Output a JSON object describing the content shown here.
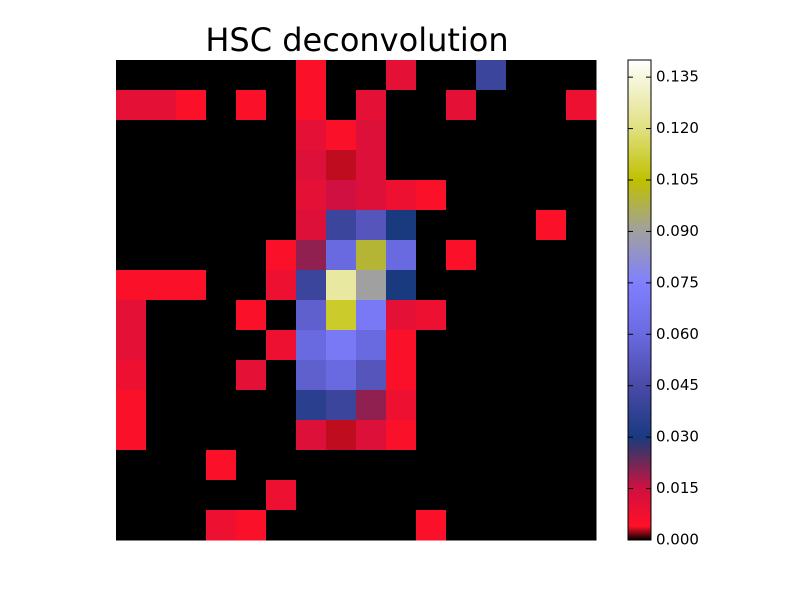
{
  "chart_data": {
    "type": "heatmap",
    "title": "HSC deconvolution",
    "values": [
      [
        0,
        0,
        0,
        0,
        0,
        0,
        0.005,
        0,
        0,
        0.01,
        0,
        0,
        0.04,
        0,
        0,
        0
      ],
      [
        0.01,
        0.01,
        0.005,
        0,
        0.005,
        0,
        0.005,
        0,
        0.01,
        0,
        0,
        0.01,
        0,
        0,
        0,
        0.008
      ],
      [
        0,
        0,
        0,
        0,
        0,
        0,
        0.01,
        0.005,
        0.012,
        0,
        0,
        0,
        0,
        0,
        0,
        0
      ],
      [
        0,
        0,
        0,
        0,
        0,
        0,
        0.012,
        0.003,
        0.012,
        0,
        0,
        0,
        0,
        0,
        0,
        0
      ],
      [
        0,
        0,
        0,
        0,
        0,
        0,
        0.01,
        0.015,
        0.012,
        0.008,
        0.005,
        0,
        0,
        0,
        0,
        0
      ],
      [
        0,
        0,
        0,
        0,
        0,
        0,
        0.012,
        0.04,
        0.05,
        0.03,
        0,
        0,
        0,
        0,
        0.005,
        0
      ],
      [
        0,
        0,
        0,
        0,
        0,
        0.005,
        0.02,
        0.06,
        0.1,
        0.06,
        0,
        0.005,
        0,
        0,
        0,
        0
      ],
      [
        0.005,
        0.005,
        0.005,
        0,
        0,
        0.008,
        0.04,
        0.125,
        0.09,
        0.03,
        0,
        0,
        0,
        0,
        0,
        0
      ],
      [
        0.01,
        0,
        0,
        0,
        0.005,
        0,
        0.055,
        0.11,
        0.07,
        0.01,
        0.008,
        0,
        0,
        0,
        0,
        0
      ],
      [
        0.01,
        0,
        0,
        0,
        0,
        0.008,
        0.06,
        0.07,
        0.06,
        0.005,
        0,
        0,
        0,
        0,
        0,
        0
      ],
      [
        0.008,
        0,
        0,
        0,
        0.01,
        0,
        0.055,
        0.06,
        0.05,
        0.005,
        0,
        0,
        0,
        0,
        0,
        0
      ],
      [
        0.005,
        0,
        0,
        0,
        0,
        0,
        0.035,
        0.04,
        0.02,
        0.008,
        0,
        0,
        0,
        0,
        0,
        0
      ],
      [
        0.005,
        0,
        0,
        0,
        0,
        0,
        0.012,
        0.003,
        0.012,
        0.005,
        0,
        0,
        0,
        0,
        0,
        0
      ],
      [
        0,
        0,
        0,
        0.005,
        0,
        0,
        0,
        0,
        0,
        0,
        0,
        0,
        0,
        0,
        0,
        0
      ],
      [
        0,
        0,
        0,
        0,
        0,
        0.008,
        0,
        0,
        0,
        0,
        0,
        0,
        0,
        0,
        0,
        0
      ],
      [
        0,
        0,
        0,
        0.008,
        0.005,
        0,
        0,
        0,
        0,
        0,
        0.005,
        0,
        0,
        0,
        0,
        0
      ]
    ],
    "clim": [
      0,
      0.14
    ],
    "cticks": [
      {
        "value": 0,
        "label": "0.000"
      },
      {
        "value": 0.015,
        "label": "0.015"
      },
      {
        "value": 0.03,
        "label": "0.030"
      },
      {
        "value": 0.045,
        "label": "0.045"
      },
      {
        "value": 0.06,
        "label": "0.060"
      },
      {
        "value": 0.075,
        "label": "0.075"
      },
      {
        "value": 0.09,
        "label": "0.090"
      },
      {
        "value": 0.105,
        "label": "0.105"
      },
      {
        "value": 0.12,
        "label": "0.120"
      },
      {
        "value": 0.135,
        "label": "0.135"
      }
    ],
    "colormap": [
      [
        0,
        "#000000"
      ],
      [
        0.004,
        "#ff1028"
      ],
      [
        0.015,
        "#d01040"
      ],
      [
        0.025,
        "#503060"
      ],
      [
        0.03,
        "#1a3a80"
      ],
      [
        0.045,
        "#4a4aa8"
      ],
      [
        0.06,
        "#6a6ae0"
      ],
      [
        0.075,
        "#8080ff"
      ],
      [
        0.09,
        "#a0a0a0"
      ],
      [
        0.105,
        "#c0c000"
      ],
      [
        0.12,
        "#e0e080"
      ],
      [
        0.14,
        "#ffffff"
      ]
    ]
  }
}
